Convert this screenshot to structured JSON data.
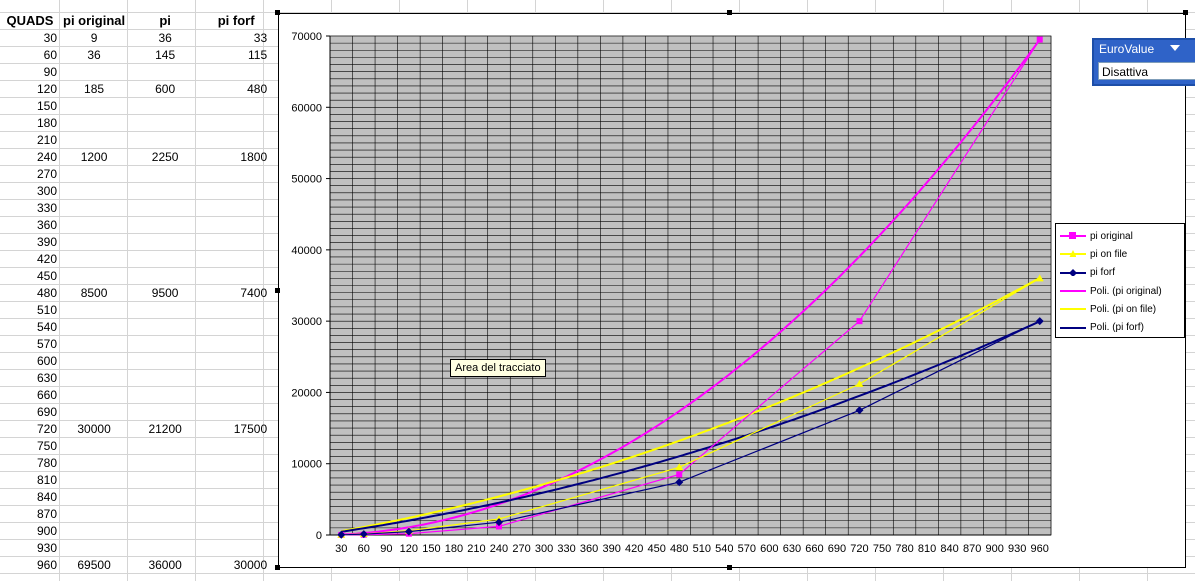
{
  "spreadsheet": {
    "headers": [
      "QUADS",
      "pi original",
      "pi",
      "pi forf"
    ],
    "rows": [
      [
        "30",
        "9",
        "36",
        "33"
      ],
      [
        "60",
        "36",
        "145",
        "115"
      ],
      [
        "90",
        "",
        "",
        ""
      ],
      [
        "120",
        "185",
        "600",
        "480"
      ],
      [
        "150",
        "",
        "",
        ""
      ],
      [
        "180",
        "",
        "",
        ""
      ],
      [
        "210",
        "",
        "",
        ""
      ],
      [
        "240",
        "1200",
        "2250",
        "1800"
      ],
      [
        "270",
        "",
        "",
        ""
      ],
      [
        "300",
        "",
        "",
        ""
      ],
      [
        "330",
        "",
        "",
        ""
      ],
      [
        "360",
        "",
        "",
        ""
      ],
      [
        "390",
        "",
        "",
        ""
      ],
      [
        "420",
        "",
        "",
        ""
      ],
      [
        "450",
        "",
        "",
        ""
      ],
      [
        "480",
        "8500",
        "9500",
        "7400"
      ],
      [
        "510",
        "",
        "",
        ""
      ],
      [
        "540",
        "",
        "",
        ""
      ],
      [
        "570",
        "",
        "",
        ""
      ],
      [
        "600",
        "",
        "",
        ""
      ],
      [
        "630",
        "",
        "",
        ""
      ],
      [
        "660",
        "",
        "",
        ""
      ],
      [
        "690",
        "",
        "",
        ""
      ],
      [
        "720",
        "30000",
        "21200",
        "17500"
      ],
      [
        "750",
        "",
        "",
        ""
      ],
      [
        "780",
        "",
        "",
        ""
      ],
      [
        "810",
        "",
        "",
        ""
      ],
      [
        "840",
        "",
        "",
        ""
      ],
      [
        "870",
        "",
        "",
        ""
      ],
      [
        "900",
        "",
        "",
        ""
      ],
      [
        "930",
        "",
        "",
        ""
      ],
      [
        "960",
        "69500",
        "36000",
        "30000"
      ]
    ]
  },
  "tooltip": "Area del tracciato",
  "euro_toolbar": {
    "title": "EuroValue",
    "value": "Disattiva"
  },
  "chart_data": {
    "type": "line",
    "x": [
      30,
      60,
      90,
      120,
      150,
      180,
      210,
      240,
      270,
      300,
      330,
      360,
      390,
      420,
      450,
      480,
      510,
      540,
      570,
      600,
      630,
      660,
      690,
      720,
      750,
      780,
      810,
      840,
      870,
      900,
      930,
      960
    ],
    "ylim": [
      0,
      70000
    ],
    "y_ticks": [
      0,
      10000,
      20000,
      30000,
      40000,
      50000,
      60000,
      70000
    ],
    "grid": true,
    "plot_area_color": "#c0c0c0",
    "legend_position": "right",
    "series": [
      {
        "name": "pi original",
        "color": "#ff00ff",
        "marker": "square",
        "points": [
          [
            30,
            9
          ],
          [
            60,
            36
          ],
          [
            120,
            185
          ],
          [
            240,
            1200
          ],
          [
            480,
            8500
          ],
          [
            720,
            30000
          ],
          [
            960,
            69500
          ]
        ]
      },
      {
        "name": "pi on file",
        "color": "#ffff00",
        "marker": "triangle",
        "points": [
          [
            30,
            36
          ],
          [
            60,
            145
          ],
          [
            120,
            600
          ],
          [
            240,
            2250
          ],
          [
            480,
            9500
          ],
          [
            720,
            21200
          ],
          [
            960,
            36000
          ]
        ]
      },
      {
        "name": "pi forf",
        "color": "#000080",
        "marker": "diamond",
        "points": [
          [
            30,
            33
          ],
          [
            60,
            115
          ],
          [
            120,
            480
          ],
          [
            240,
            1800
          ],
          [
            480,
            7400
          ],
          [
            720,
            17500
          ],
          [
            960,
            30000
          ]
        ]
      }
    ],
    "trendlines": [
      {
        "name": "Poli. (pi original)",
        "color": "#ff00ff",
        "coef": [
          0,
          0,
          0.0754
        ]
      },
      {
        "name": "Poli. (pi on file)",
        "color": "#ffff00",
        "coef": [
          0,
          17.5,
          0.0209
        ]
      },
      {
        "name": "Poli. (pi forf)",
        "color": "#000080",
        "coef": [
          0,
          14.8,
          0.0171
        ]
      }
    ]
  }
}
